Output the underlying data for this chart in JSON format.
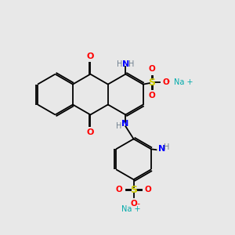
{
  "background_color": "#e8e8e8",
  "figsize": [
    3.0,
    3.0
  ],
  "dpi": 100,
  "colors": {
    "C": "#000000",
    "O": "#ff0000",
    "N": "#0000ff",
    "S": "#cccc00",
    "Na": "#00aaaa",
    "H": "#708090",
    "bond": "#000000"
  },
  "lw": 1.3
}
